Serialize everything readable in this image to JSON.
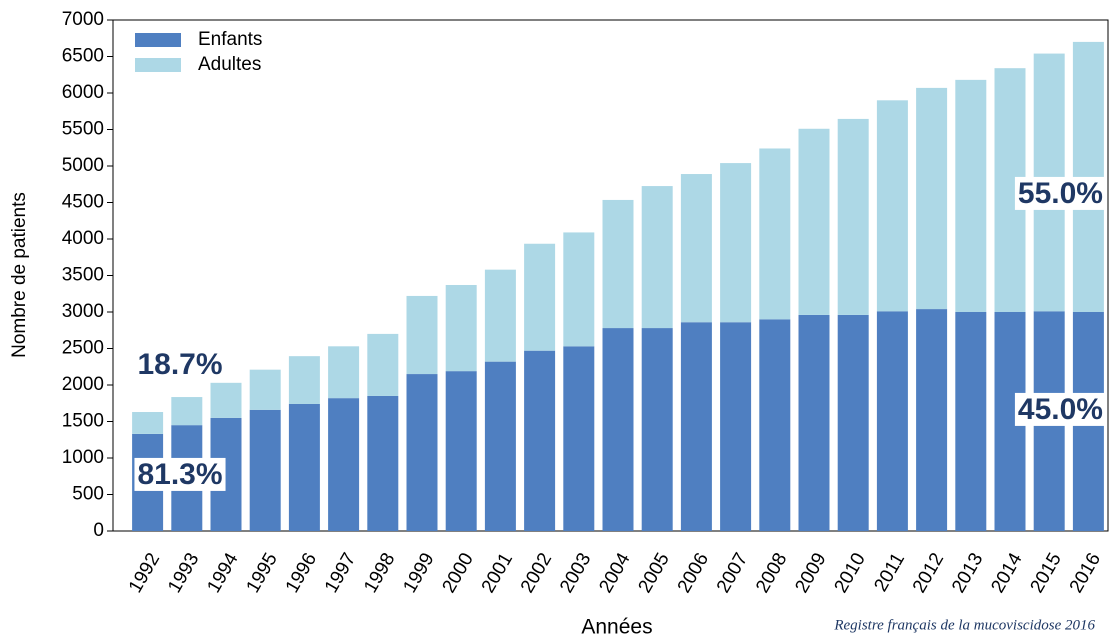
{
  "chart_data": {
    "type": "stacked_bar",
    "categories": [
      "1992",
      "1993",
      "1994",
      "1995",
      "1996",
      "1997",
      "1998",
      "1999",
      "2000",
      "2001",
      "2002",
      "2003",
      "2004",
      "2005",
      "2006",
      "2007",
      "2008",
      "2009",
      "2010",
      "2011",
      "2012",
      "2013",
      "2014",
      "2015",
      "2016"
    ],
    "series": [
      {
        "name": "Enfants",
        "color": "#4f7fc1",
        "values": [
          1330,
          1450,
          1550,
          1660,
          1740,
          1820,
          1850,
          2150,
          2190,
          2320,
          2470,
          2530,
          2780,
          2780,
          2860,
          2860,
          2900,
          2960,
          2960,
          3010,
          3040,
          3000,
          3000,
          3010,
          3000
        ]
      },
      {
        "name": "Adultes",
        "color": "#add8e6",
        "values": [
          300,
          385,
          480,
          550,
          655,
          710,
          850,
          1070,
          1180,
          1260,
          1465,
          1560,
          1755,
          1945,
          2030,
          2180,
          2340,
          2550,
          2685,
          2890,
          3030,
          3180,
          3340,
          3530,
          3700
        ]
      }
    ],
    "ylim": [
      0,
      7000
    ],
    "yticks": [
      0,
      500,
      1000,
      1500,
      2000,
      2500,
      3000,
      3500,
      4000,
      4500,
      5000,
      5500,
      6000,
      6500,
      7000
    ],
    "y_label": "Nombre de patients",
    "x_label": "Années",
    "legend": "upper left",
    "annotations": [
      {
        "text": "18.7%"
      },
      {
        "text": "81.3%"
      },
      {
        "text": "55.0%"
      },
      {
        "text": "45.0%"
      }
    ],
    "source": "Registre français de la mucoviscidose 2016"
  }
}
